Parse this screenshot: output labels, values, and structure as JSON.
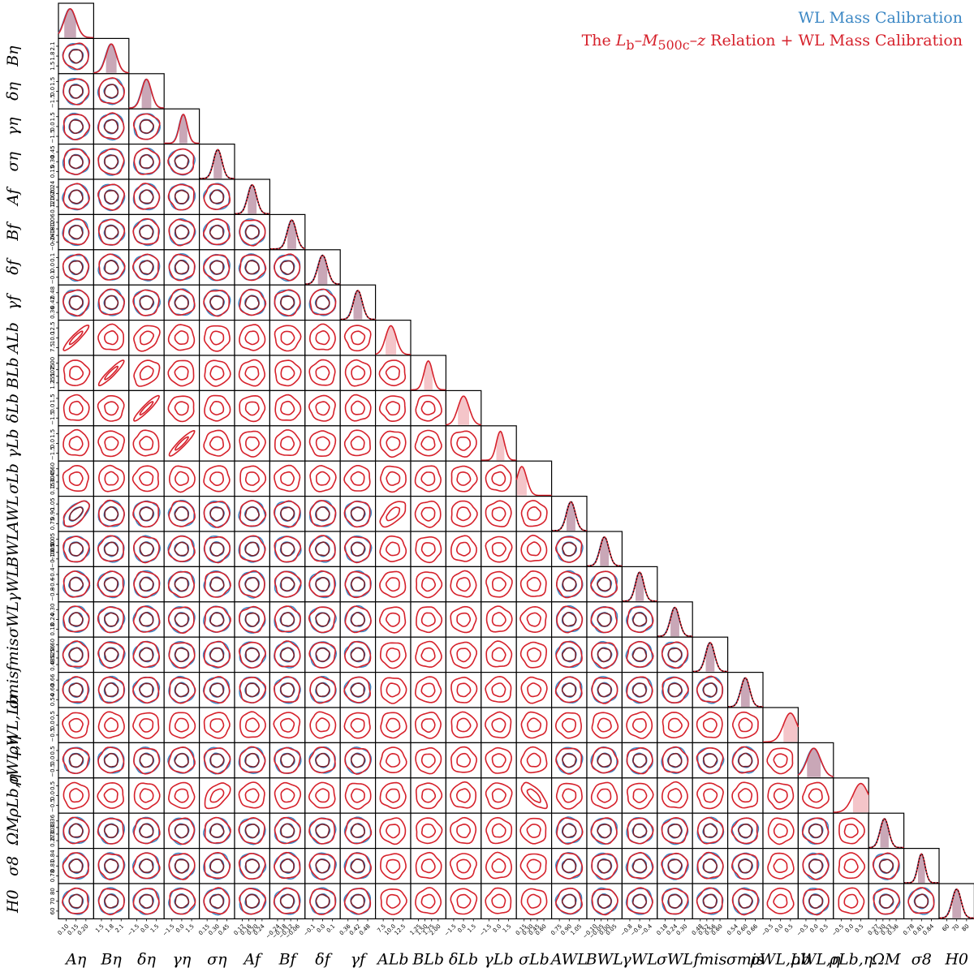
{
  "legend": [
    {
      "label": "WL Mass Calibration",
      "color": "#3b87c4"
    },
    {
      "label": "The Lb–M500c–z Relation + WL Mass Calibration",
      "color": "#d6212b"
    }
  ],
  "chart_data": {
    "type": "corner",
    "title": "",
    "grid": false,
    "legend_placement": "top-right",
    "series": [
      {
        "name": "WL Mass Calibration",
        "color": "#3b87c4"
      },
      {
        "name": "The Lb–M500c–z Relation + WL Mass Calibration",
        "color": "#d6212b"
      }
    ],
    "parameters": [
      {
        "label": "Aη",
        "ticks": [
          "0.10",
          "0.15",
          "0.20"
        ],
        "mean": 0.12,
        "sd": 0.025,
        "range": [
          0.07,
          0.22
        ],
        "wl": true
      },
      {
        "label": "Bη",
        "ticks": [
          "1.5",
          "1.8",
          "2.1"
        ],
        "mean": 1.7,
        "sd": 0.15,
        "range": [
          1.2,
          2.2
        ],
        "wl": true
      },
      {
        "label": "δη",
        "ticks": [
          "−1.5",
          "0.0",
          "1.5"
        ],
        "mean": 0.0,
        "sd": 0.6,
        "range": [
          -2.2,
          2.2
        ],
        "wl": true
      },
      {
        "label": "γη",
        "ticks": [
          "−1.5",
          "0.0",
          "1.5"
        ],
        "mean": 0.2,
        "sd": 0.5,
        "range": [
          -2.2,
          2.2
        ],
        "wl": true
      },
      {
        "label": "ση",
        "ticks": [
          "0.15",
          "0.30",
          "0.45"
        ],
        "mean": 0.3,
        "sd": 0.05,
        "range": [
          0.08,
          0.5
        ],
        "wl": true,
        "prior": true
      },
      {
        "label": "Af",
        "ticks": [
          "0.12",
          "0.16",
          "0.20",
          "0.24"
        ],
        "mean": 0.18,
        "sd": 0.02,
        "range": [
          0.1,
          0.26
        ],
        "wl": true,
        "prior": true
      },
      {
        "label": "Bf",
        "ticks": [
          "−0.24",
          "−0.18",
          "−0.12",
          "−0.06"
        ],
        "mean": -0.12,
        "sd": 0.03,
        "range": [
          -0.27,
          -0.03
        ],
        "wl": true,
        "prior": true
      },
      {
        "label": "δf",
        "ticks": [
          "−0.1",
          "0.0",
          "0.1"
        ],
        "mean": 0.0,
        "sd": 0.04,
        "range": [
          -0.15,
          0.15
        ],
        "wl": true,
        "prior": true
      },
      {
        "label": "γf",
        "ticks": [
          "0.36",
          "0.42",
          "0.48"
        ],
        "mean": 0.42,
        "sd": 0.025,
        "range": [
          0.32,
          0.52
        ],
        "wl": true,
        "prior": true
      },
      {
        "label": "ALb",
        "ticks": [
          "7.5",
          "10.0",
          "12.5"
        ],
        "mean": 9.5,
        "sd": 1.2,
        "range": [
          6.0,
          14.0
        ],
        "wl": false
      },
      {
        "label": "BLb",
        "ticks": [
          "1.25",
          "1.50",
          "1.75",
          "2.00"
        ],
        "mean": 1.6,
        "sd": 0.12,
        "range": [
          1.1,
          2.1
        ],
        "wl": false
      },
      {
        "label": "δLb",
        "ticks": [
          "−1.5",
          "0.0",
          "1.5"
        ],
        "mean": 0.0,
        "sd": 0.7,
        "range": [
          -2.2,
          2.2
        ],
        "wl": false
      },
      {
        "label": "γLb",
        "ticks": [
          "−1.5",
          "0.0",
          "1.5"
        ],
        "mean": 0.2,
        "sd": 0.5,
        "range": [
          -2.2,
          2.2
        ],
        "wl": false
      },
      {
        "label": "σLb",
        "ticks": [
          "0.15",
          "0.30",
          "0.45",
          "0.60"
        ],
        "mean": 0.1,
        "sd": 0.09,
        "range": [
          0.0,
          0.65
        ],
        "wl": false
      },
      {
        "label": "AWL",
        "ticks": [
          "0.75",
          "0.90",
          "1.05"
        ],
        "mean": 0.92,
        "sd": 0.05,
        "range": [
          0.7,
          1.1
        ],
        "wl": true,
        "prior": true
      },
      {
        "label": "BWL",
        "ticks": [
          "−0.10",
          "−0.05",
          "0.00",
          "0.05"
        ],
        "mean": -0.03,
        "sd": 0.025,
        "range": [
          -0.13,
          0.07
        ],
        "wl": true,
        "prior": true
      },
      {
        "label": "γWL",
        "ticks": [
          "−0.8",
          "−0.6",
          "−0.4"
        ],
        "mean": -0.6,
        "sd": 0.07,
        "range": [
          -0.9,
          -0.3
        ],
        "wl": true,
        "prior": true
      },
      {
        "label": "σWL",
        "ticks": [
          "0.18",
          "0.24",
          "0.30"
        ],
        "mean": 0.24,
        "sd": 0.025,
        "range": [
          0.14,
          0.34
        ],
        "wl": true,
        "prior": true
      },
      {
        "label": "fmis",
        "ticks": [
          "0.48",
          "0.52",
          "0.56",
          "0.60"
        ],
        "mean": 0.54,
        "sd": 0.02,
        "range": [
          0.46,
          0.62
        ],
        "wl": true,
        "prior": true
      },
      {
        "label": "σmis",
        "ticks": [
          "0.54",
          "0.60",
          "0.66"
        ],
        "mean": 0.6,
        "sd": 0.025,
        "range": [
          0.5,
          0.7
        ],
        "wl": true,
        "prior": true
      },
      {
        "label": "ρWL,Lb",
        "ticks": [
          "−0.5",
          "0.0",
          "0.5"
        ],
        "mean": 0.5,
        "sd": 0.35,
        "range": [
          -0.9,
          0.9
        ],
        "wl": false
      },
      {
        "label": "ρWL,η",
        "ticks": [
          "−0.5",
          "0.0",
          "0.5"
        ],
        "mean": -0.1,
        "sd": 0.35,
        "range": [
          -0.9,
          0.9
        ],
        "wl": true
      },
      {
        "label": "ρLb,η",
        "ticks": [
          "−0.5",
          "0.0",
          "0.5"
        ],
        "mean": 0.5,
        "sd": 0.4,
        "range": [
          -0.9,
          0.9
        ],
        "wl": false
      },
      {
        "label": "ΩM",
        "ticks": [
          "0.27",
          "0.30",
          "0.33",
          "0.36"
        ],
        "mean": 0.305,
        "sd": 0.012,
        "range": [
          0.26,
          0.36
        ],
        "wl": true,
        "prior": true
      },
      {
        "label": "σ8",
        "ticks": [
          "0.78",
          "0.81",
          "0.84"
        ],
        "mean": 0.81,
        "sd": 0.012,
        "range": [
          0.75,
          0.87
        ],
        "wl": true,
        "prior": true
      },
      {
        "label": "H0",
        "ticks": [
          "60",
          "70",
          "80"
        ],
        "mean": 70,
        "sd": 3,
        "range": [
          58,
          82
        ],
        "wl": true,
        "prior": true
      }
    ],
    "correlations": [
      {
        "row": "ALb",
        "col": "Aη",
        "r": 0.92
      },
      {
        "row": "BLb",
        "col": "Bη",
        "r": 0.93
      },
      {
        "row": "δLb",
        "col": "δη",
        "r": 0.93
      },
      {
        "row": "γLb",
        "col": "γη",
        "r": 0.93
      },
      {
        "row": "AWL",
        "col": "Aη",
        "r": 0.6
      },
      {
        "row": "AWL",
        "col": "ALb",
        "r": 0.6
      },
      {
        "row": "ρLb,η",
        "col": "σLb",
        "r": -0.7
      },
      {
        "row": "ρLb,η",
        "col": "ση",
        "r": 0.5
      },
      {
        "row": "ALb",
        "col": "δη",
        "r": 0.3
      },
      {
        "row": "BLb",
        "col": "δη",
        "r": 0.3
      }
    ]
  }
}
